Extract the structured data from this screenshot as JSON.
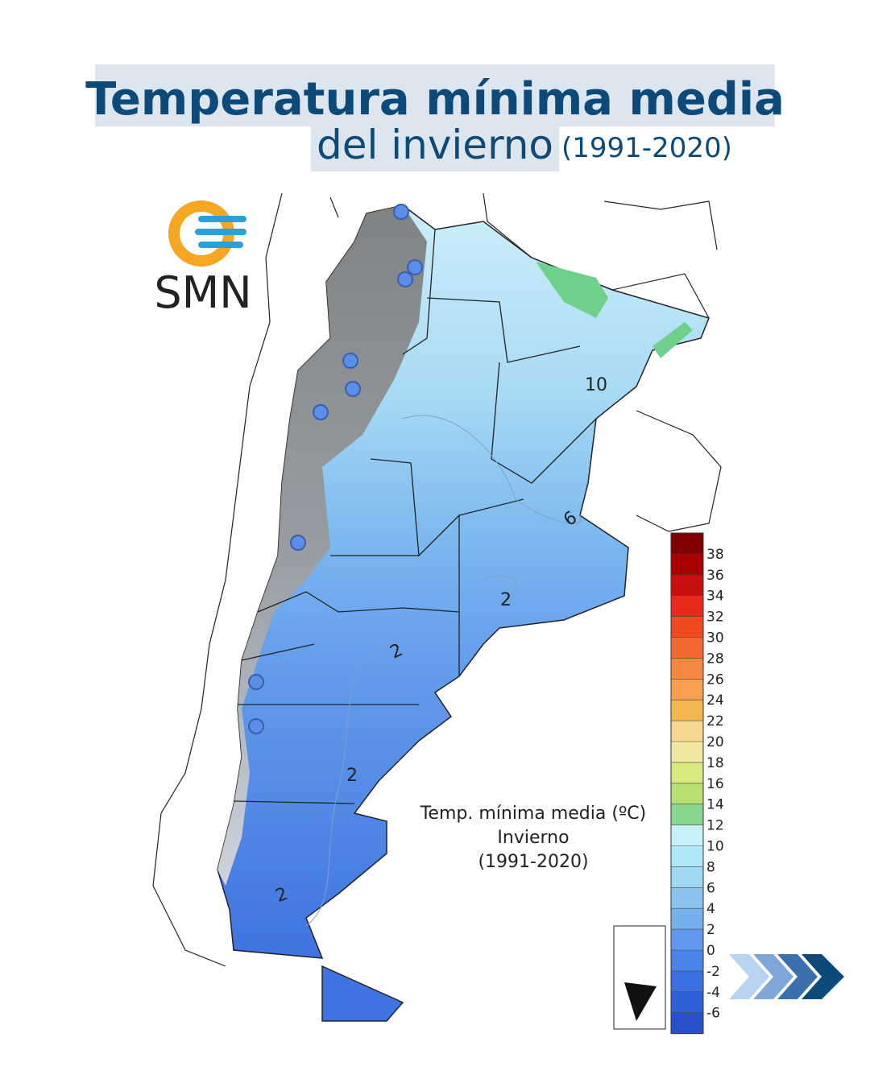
{
  "header": {
    "title": "Temperatura mínima media",
    "subtitle": "del invierno",
    "period": "(1991-2020)"
  },
  "logo": {
    "text": "SMN"
  },
  "map": {
    "contour_labels": [
      10,
      6,
      2,
      2,
      2,
      2
    ],
    "legend_title": [
      "Temp. mínima media (ºC)",
      "Invierno",
      "(1991-2020)"
    ]
  },
  "colorbar": {
    "ticks": [
      38,
      36,
      34,
      32,
      30,
      28,
      26,
      24,
      22,
      20,
      18,
      16,
      14,
      12,
      10,
      8,
      6,
      4,
      2,
      0,
      -2,
      -4,
      -6
    ],
    "colors": [
      "#800000",
      "#a80000",
      "#c81010",
      "#e82a1a",
      "#f04a20",
      "#f26830",
      "#f58840",
      "#f6a050",
      "#f5b850",
      "#f6d890",
      "#f0e8a0",
      "#d8ea80",
      "#b8e070",
      "#88d890",
      "#c8f0f8",
      "#b0e8f8",
      "#a0d8f4",
      "#8cc4f0",
      "#78b0ee",
      "#6098ec",
      "#4a84e8",
      "#3a70e0",
      "#3060d8",
      "#2850c8"
    ]
  }
}
